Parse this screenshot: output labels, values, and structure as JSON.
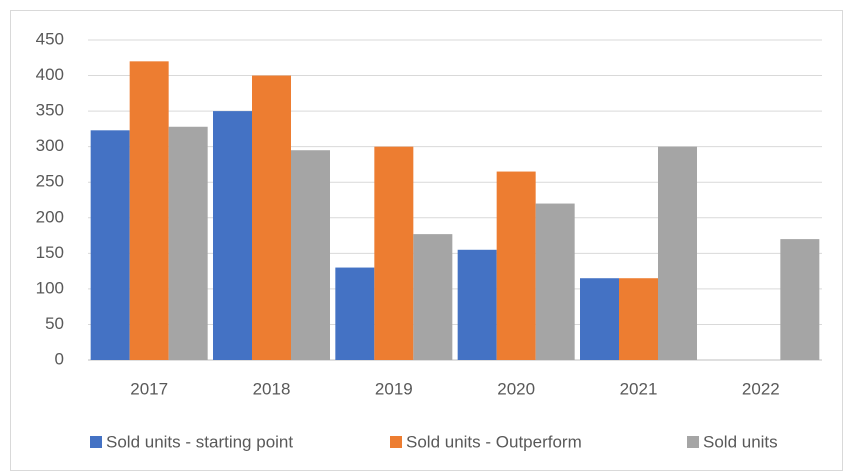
{
  "chart_data": {
    "type": "bar",
    "categories": [
      "2017",
      "2018",
      "2019",
      "2020",
      "2021",
      "2022"
    ],
    "series": [
      {
        "name": "Sold units - starting point",
        "color": "#4472c4",
        "values": [
          323,
          350,
          130,
          155,
          115,
          null
        ]
      },
      {
        "name": "Sold units - Outperform",
        "color": "#ed7d31",
        "values": [
          420,
          400,
          300,
          265,
          115,
          null
        ]
      },
      {
        "name": "Sold units",
        "color": "#a5a5a5",
        "values": [
          328,
          295,
          177,
          220,
          300,
          170
        ]
      }
    ],
    "ylim": [
      0,
      450
    ],
    "yticks": [
      0,
      50,
      100,
      150,
      200,
      250,
      300,
      350,
      400,
      450
    ],
    "grid": true,
    "legend": "bottom"
  }
}
